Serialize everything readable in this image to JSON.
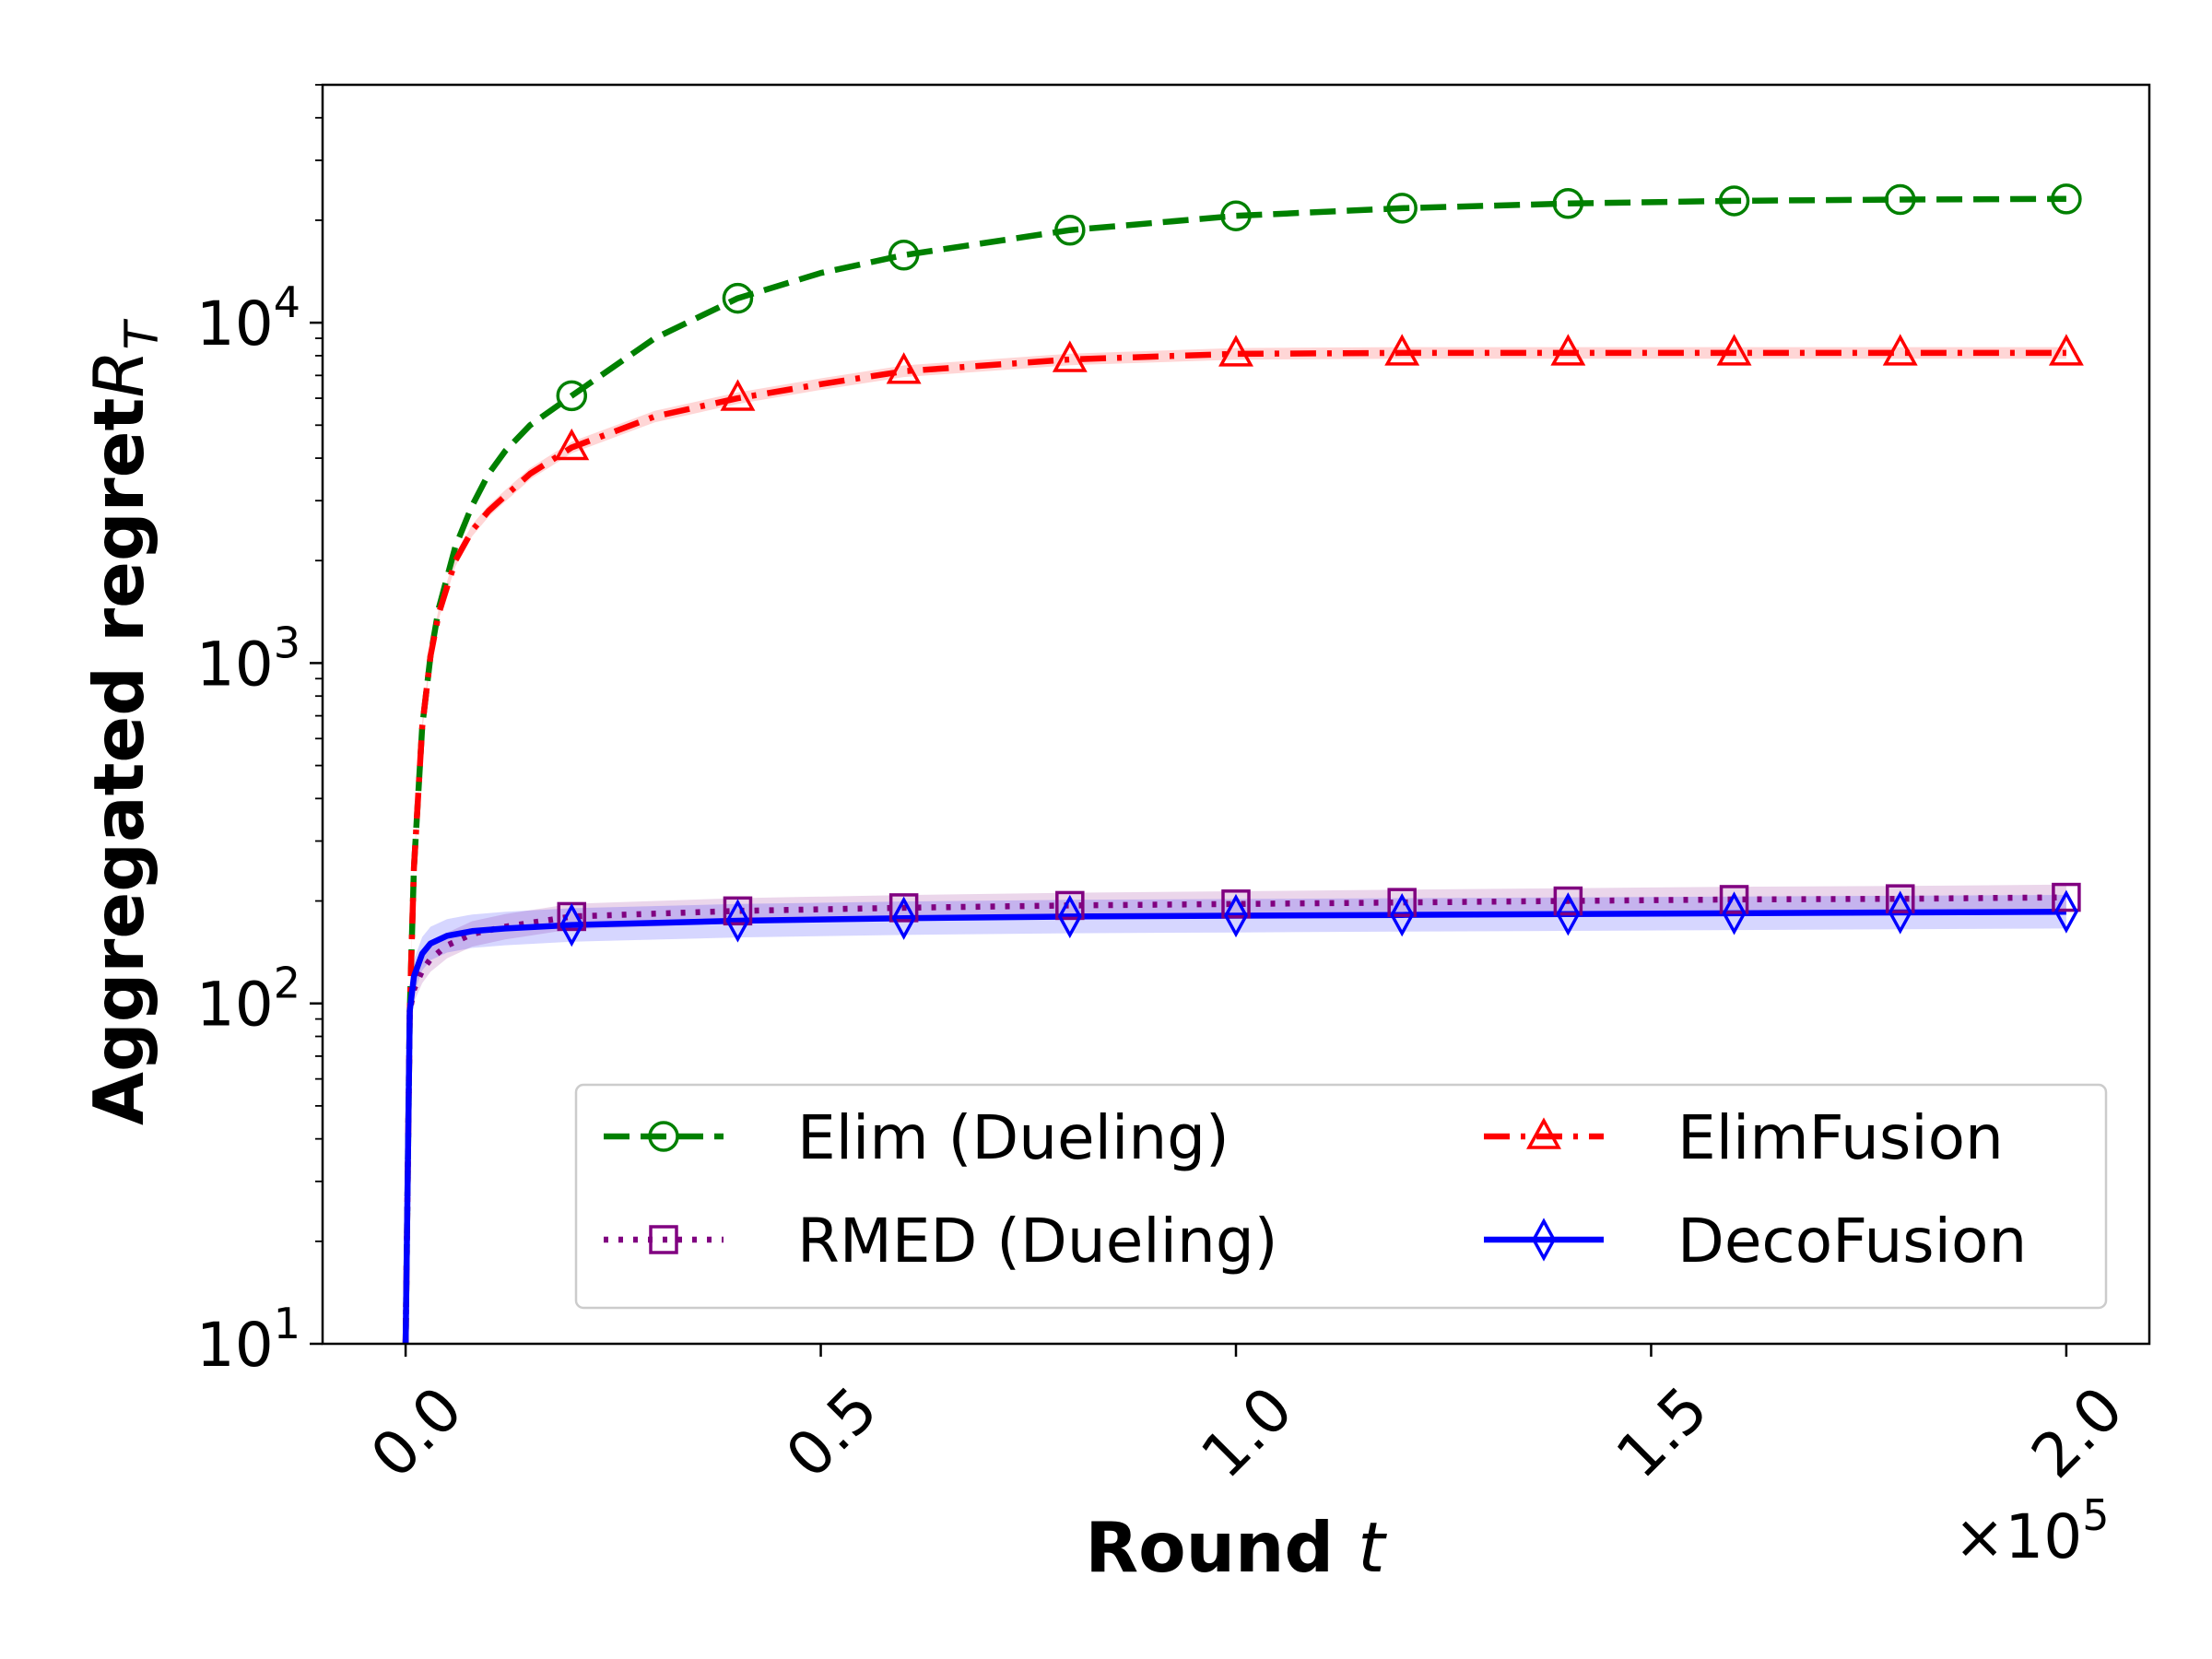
{
  "chart_data": {
    "type": "line",
    "xlabel": {
      "text": "Round ",
      "var": "t"
    },
    "ylabel": {
      "text": "Aggregated regret",
      "var": "R",
      "sub": "T"
    },
    "x_multiplier": {
      "prefix": "×10",
      "exp": "5"
    },
    "xlim": [
      -10000,
      210000
    ],
    "ylim": [
      10,
      50000
    ],
    "yscale": "log",
    "x_ticks": [
      {
        "value": 0,
        "label": "0.0"
      },
      {
        "value": 50000,
        "label": "0.5"
      },
      {
        "value": 100000,
        "label": "1.0"
      },
      {
        "value": 150000,
        "label": "1.5"
      },
      {
        "value": 200000,
        "label": "2.0"
      }
    ],
    "y_ticks": [
      {
        "value": 10,
        "base": "10",
        "exp": "1"
      },
      {
        "value": 100,
        "base": "10",
        "exp": "2"
      },
      {
        "value": 1000,
        "base": "10",
        "exp": "3"
      },
      {
        "value": 10000,
        "base": "10",
        "exp": "4"
      }
    ],
    "grid": false,
    "legend_placement": "lower-right",
    "series": [
      {
        "name": "Elim (Dueling)",
        "color": "#008000",
        "dash": "dashed",
        "marker": "circle",
        "x": [
          0,
          500,
          1000,
          2000,
          3000,
          4000,
          6000,
          8000,
          10000,
          12000,
          15000,
          20000,
          30000,
          40000,
          50000,
          60000,
          80000,
          100000,
          120000,
          140000,
          160000,
          180000,
          200000
        ],
        "y": [
          10,
          95,
          250,
          650,
          1050,
          1450,
          2200,
          2900,
          3600,
          4200,
          5000,
          6100,
          9000,
          11800,
          14000,
          15800,
          18700,
          20600,
          21700,
          22400,
          22800,
          23000,
          23100
        ],
        "band": null
      },
      {
        "name": "ElimFusion",
        "color": "#ff0000",
        "dash": "dashdot",
        "marker": "triangle",
        "x": [
          0,
          500,
          1000,
          2000,
          3000,
          4000,
          6000,
          8000,
          10000,
          12000,
          15000,
          20000,
          30000,
          40000,
          50000,
          60000,
          80000,
          100000,
          120000,
          140000,
          160000,
          180000,
          200000
        ],
        "y": [
          10,
          95,
          250,
          650,
          1050,
          1400,
          2000,
          2450,
          2800,
          3100,
          3600,
          4300,
          5300,
          6000,
          6600,
          7200,
          7800,
          8100,
          8150,
          8150,
          8150,
          8150,
          8150
        ],
        "band": 0.04
      },
      {
        "name": "RMED (Dueling)",
        "color": "#800080",
        "dash": "dotted",
        "marker": "square",
        "x": [
          0,
          500,
          1000,
          2000,
          3000,
          5000,
          8000,
          12000,
          20000,
          40000,
          60000,
          80000,
          100000,
          120000,
          140000,
          160000,
          180000,
          200000
        ],
        "y": [
          10,
          95,
          110,
          125,
          135,
          148,
          160,
          168,
          180,
          187,
          191,
          194,
          196,
          198,
          200,
          202,
          203,
          205
        ],
        "band": 0.09
      },
      {
        "name": "DecoFusion",
        "color": "#0000ff",
        "dash": "solid",
        "marker": "diamond",
        "x": [
          0,
          500,
          1000,
          2000,
          3000,
          5000,
          8000,
          12000,
          20000,
          40000,
          60000,
          80000,
          100000,
          120000,
          140000,
          160000,
          180000,
          200000
        ],
        "y": [
          10,
          95,
          120,
          140,
          150,
          158,
          163,
          166,
          170,
          175,
          178,
          180,
          181,
          182,
          183,
          184,
          185,
          186
        ],
        "band": 0.12
      }
    ],
    "marker_x": [
      20000,
      40000,
      60000,
      80000,
      100000,
      120000,
      140000,
      160000,
      180000,
      200000
    ],
    "legend_order": [
      "Elim (Dueling)",
      "ElimFusion",
      "RMED (Dueling)",
      "DecoFusion"
    ]
  }
}
